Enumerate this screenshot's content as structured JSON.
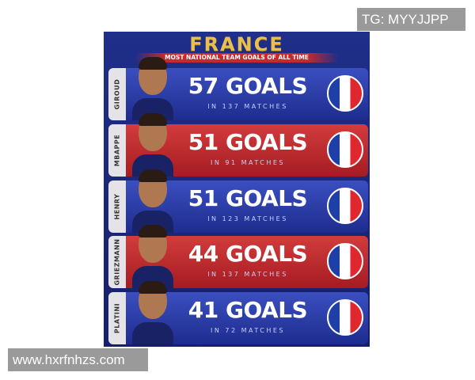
{
  "watermarks": {
    "top": "TG: MYYJJPP",
    "bottom": "www.hxrfnhzs.com"
  },
  "poster": {
    "title": "FRANCE",
    "subtitle": "MOST NATIONAL TEAM GOALS OF ALL TIME",
    "players": [
      {
        "name": "GIROUD",
        "goals": "57 GOALS",
        "matches": "IN 137 MATCHES",
        "color": "blue"
      },
      {
        "name": "MBAPPE",
        "goals": "51 GOALS",
        "matches": "IN 91 MATCHES",
        "color": "red"
      },
      {
        "name": "HENRY",
        "goals": "51 GOALS",
        "matches": "IN 123 MATCHES",
        "color": "blue"
      },
      {
        "name": "GRIEZMANN",
        "goals": "44 GOALS",
        "matches": "IN 137 MATCHES",
        "color": "red"
      },
      {
        "name": "PLATINI",
        "goals": "41 GOALS",
        "matches": "IN 72 MATCHES",
        "color": "blue"
      }
    ]
  },
  "colors": {
    "blue": "#2a3aa8",
    "red": "#c22e30",
    "gold": "#e8c050"
  }
}
